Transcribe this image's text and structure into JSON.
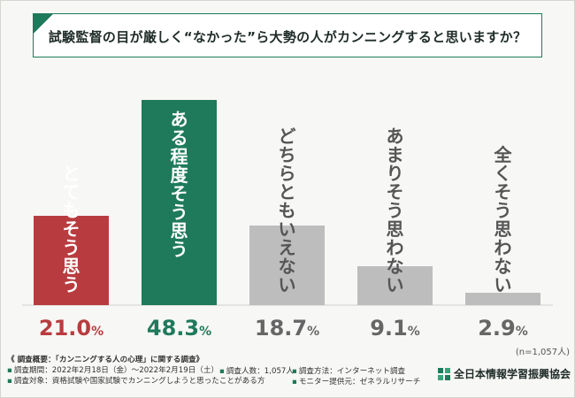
{
  "title": "試験監督の目が厳しく“なかった”ら大勢の人がカンニングすると思いますか？",
  "colors": {
    "accent": "#1f7a5c",
    "red": "#b83c3f",
    "green": "#1f7a5c",
    "gray": "#bdbdbd",
    "grayText": "#666666"
  },
  "chart_data": {
    "type": "bar",
    "categories": [
      "とてもそう思う",
      "ある程度そう思う",
      "どちらともいえない",
      "あまりそう思わない",
      "全くそう思わない"
    ],
    "values": [
      21.0,
      48.3,
      18.7,
      9.1,
      2.9
    ],
    "value_labels": [
      "21.0",
      "48.3",
      "18.7",
      "9.1",
      "2.9"
    ],
    "unit": "%",
    "bar_colors": [
      "#b83c3f",
      "#1f7a5c",
      "#bdbdbd",
      "#bdbdbd",
      "#bdbdbd"
    ],
    "label_colors": [
      "#ffffff",
      "#ffffff",
      "#555555",
      "#555555",
      "#555555"
    ],
    "value_colors": [
      "#b83c3f",
      "#1f7a5c",
      "#666666",
      "#666666",
      "#666666"
    ],
    "ylim": [
      0,
      50
    ],
    "grid": false
  },
  "sample_note": "(n=1,057人)",
  "footer": {
    "heading": "《 調査概要：「カンニングする人の心理」に関する調査》",
    "items": [
      [
        "調査期間：2022年2月18日（金）～2022年2月19日（土）",
        "調査人数：1,057人",
        "調査方法：インターネット調査"
      ],
      [
        "調査対象：資格試験や国家試験でカンニングしようと思ったことがある方",
        "",
        "モニター提供元：ゼネラルリサーチ"
      ]
    ]
  },
  "logo": {
    "text": "全日本情報学習振興協会",
    "icon": "organization-logo-icon"
  }
}
